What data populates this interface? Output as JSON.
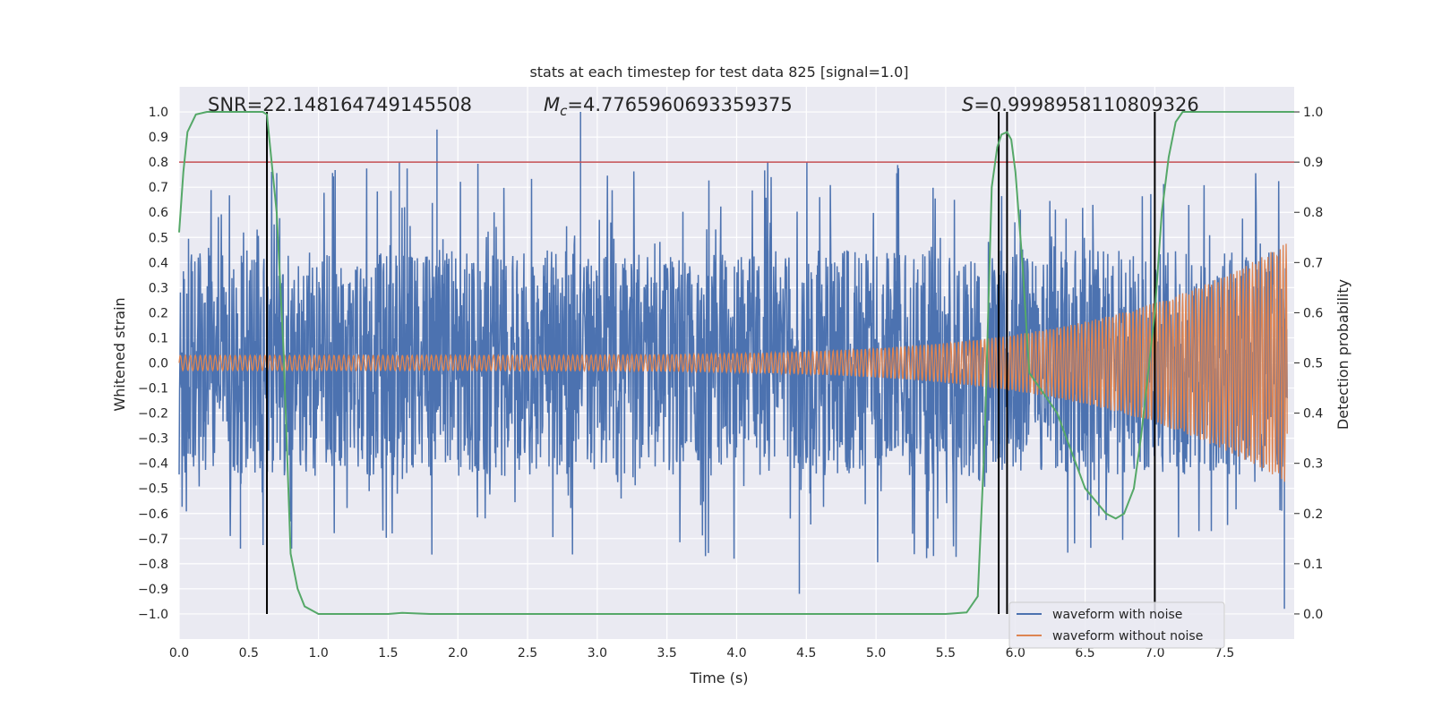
{
  "chart_data": {
    "type": "line",
    "title": "stats at each timestep for test data 825 [signal=1.0]",
    "xlabel": "Time (s)",
    "ylabel_left": "Whitened strain",
    "ylabel_right": "Detection probability",
    "xlim": [
      0.0,
      8.0
    ],
    "ylim_left": [
      -1.1,
      1.1
    ],
    "ylim_right": [
      -0.05,
      1.05
    ],
    "xticks": [
      "0.0",
      "0.5",
      "1.0",
      "1.5",
      "2.0",
      "2.5",
      "3.0",
      "3.5",
      "4.0",
      "4.5",
      "5.0",
      "5.5",
      "6.0",
      "6.5",
      "7.0",
      "7.5"
    ],
    "xtick_values": [
      0.0,
      0.5,
      1.0,
      1.5,
      2.0,
      2.5,
      3.0,
      3.5,
      4.0,
      4.5,
      5.0,
      5.5,
      6.0,
      6.5,
      7.0,
      7.5
    ],
    "yticks_left": [
      "1.0",
      "0.9",
      "0.8",
      "0.7",
      "0.6",
      "0.5",
      "0.4",
      "0.3",
      "0.2",
      "0.1",
      "0.0",
      "−0.1",
      "−0.2",
      "−0.3",
      "−0.4",
      "−0.5",
      "−0.6",
      "−0.7",
      "−0.8",
      "−0.9",
      "−1.0"
    ],
    "ytick_values_left": [
      1.0,
      0.9,
      0.8,
      0.7,
      0.6,
      0.5,
      0.4,
      0.3,
      0.2,
      0.1,
      0.0,
      -0.1,
      -0.2,
      -0.3,
      -0.4,
      -0.5,
      -0.6,
      -0.7,
      -0.8,
      -0.9,
      -1.0
    ],
    "yticks_right": [
      "1.0",
      "0.9",
      "0.8",
      "0.7",
      "0.6",
      "0.5",
      "0.4",
      "0.3",
      "0.2",
      "0.1",
      "0.0"
    ],
    "ytick_values_right": [
      1.0,
      0.9,
      0.8,
      0.7,
      0.6,
      0.5,
      0.4,
      0.3,
      0.2,
      0.1,
      0.0
    ],
    "annotations": {
      "snr": "SNR=22.148164749145508",
      "mc_symbol": "M",
      "mc_subscript": "c",
      "mc_value": "=4.7765960693359375",
      "s_symbol": "S",
      "s_value": "=0.9998958110809326"
    },
    "threshold": {
      "value": 0.9,
      "axis": "right",
      "color": "#c44e52"
    },
    "vertical_lines": [
      0.63,
      5.88,
      5.94,
      7.0
    ],
    "series": [
      {
        "name": "waveform with noise",
        "axis": "left",
        "color": "#4c72b0",
        "kind": "noisy-strain",
        "envelope_abs": 0.45,
        "peak_extremes": [
          {
            "x": 1.85,
            "y": 0.93
          },
          {
            "x": 2.88,
            "y": 1.0
          },
          {
            "x": 4.45,
            "y": -0.92
          },
          {
            "x": 7.93,
            "y": -0.98
          },
          {
            "x": 0.44,
            "y": -0.74
          },
          {
            "x": 1.58,
            "y": 0.8
          }
        ]
      },
      {
        "name": "waveform without noise",
        "axis": "left",
        "color": "#dd8452",
        "kind": "chirp",
        "amplitude_start": 0.03,
        "amplitude_end": 0.48,
        "t_end": 7.95
      },
      {
        "name": "detection probability",
        "axis": "right",
        "color": "#55a868",
        "x": [
          0.0,
          0.03,
          0.06,
          0.12,
          0.2,
          0.3,
          0.5,
          0.6,
          0.63,
          0.7,
          0.75,
          0.8,
          0.85,
          0.9,
          1.0,
          1.2,
          1.5,
          1.6,
          1.8,
          2.0,
          3.0,
          4.0,
          5.0,
          5.5,
          5.65,
          5.73,
          5.78,
          5.83,
          5.87,
          5.9,
          5.94,
          5.97,
          6.0,
          6.05,
          6.1,
          6.2,
          6.3,
          6.5,
          6.65,
          6.72,
          6.78,
          6.85,
          6.9,
          7.0,
          7.05,
          7.1,
          7.15,
          7.2,
          7.5,
          8.0
        ],
        "y": [
          0.76,
          0.88,
          0.96,
          0.995,
          1.0,
          1.0,
          1.0,
          1.0,
          0.995,
          0.8,
          0.52,
          0.12,
          0.05,
          0.015,
          0.0,
          0.0,
          0.0,
          0.002,
          0.0,
          0.0,
          0.0,
          0.0,
          0.0,
          0.0,
          0.003,
          0.035,
          0.35,
          0.85,
          0.93,
          0.955,
          0.96,
          0.945,
          0.88,
          0.7,
          0.48,
          0.44,
          0.4,
          0.25,
          0.2,
          0.19,
          0.2,
          0.25,
          0.35,
          0.6,
          0.8,
          0.91,
          0.98,
          1.0,
          1.0,
          1.0
        ]
      }
    ],
    "legend": {
      "placement": "lower-right",
      "entries": [
        {
          "label": "waveform with noise",
          "color": "#4c72b0"
        },
        {
          "label": "waveform without noise",
          "color": "#dd8452"
        }
      ]
    }
  }
}
